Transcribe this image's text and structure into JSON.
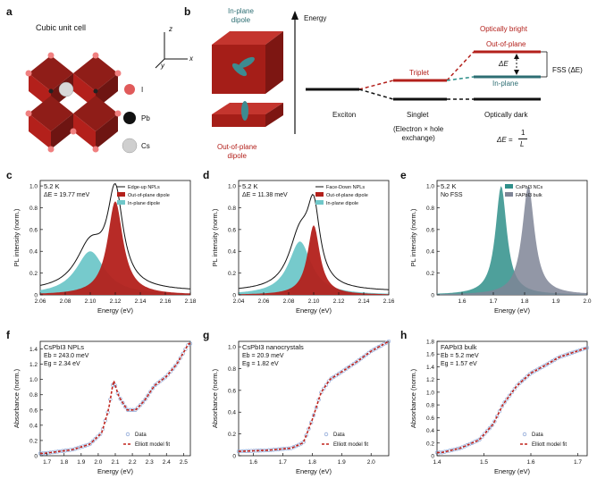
{
  "panel_letters": [
    "a",
    "b",
    "c",
    "d",
    "e",
    "f",
    "g",
    "h"
  ],
  "panel_a": {
    "title": "Cubic unit cell",
    "legend": [
      {
        "label": "I",
        "color": "#e05a5a"
      },
      {
        "label": "Pb",
        "color": "#111111"
      },
      {
        "label": "Cs",
        "color": "#cfcfcf"
      }
    ],
    "axes": [
      "z",
      "y",
      "x"
    ]
  },
  "panel_b": {
    "in_plane_label": "In-plane\ndipole",
    "out_plane_label": "Out-of-plane\ndipole",
    "energy_label": "Energy",
    "optically_bright": "Optically bright",
    "out_of_plane": "Out-of-plane",
    "delta_e": "ΔE",
    "fss": "FSS (ΔE)",
    "in_plane": "In-plane",
    "triplet": "Triplet",
    "exciton": "Exciton",
    "singlet": "Singlet",
    "optically_dark": "Optically dark",
    "exchange": "(Electron × hole\nexchange)",
    "formula_lhs": "ΔE =",
    "formula_num": "1",
    "formula_den": "L"
  },
  "colors": {
    "red": "#b3201b",
    "cyan": "#6fc7c9",
    "teal": "#2f8f8a",
    "grey": "#7f8596",
    "dark_teal": "#2d6e73",
    "fit_red": "#c0241c",
    "data_blue": "#8fa8d8"
  },
  "chart_data": [
    {
      "id": "c",
      "type": "area",
      "annotation_lines": [
        "5.2 K",
        "ΔE = 19.77 meV"
      ],
      "xlabel": "Energy (eV)",
      "ylabel": "PL intensity (norm.)",
      "xlim": [
        2.06,
        2.18
      ],
      "ylim": [
        0,
        1.05
      ],
      "xticks": [
        "2.06",
        "2.08",
        "2.10",
        "2.12",
        "2.14",
        "2.16",
        "2.18"
      ],
      "yticks": [
        "0",
        "0.2",
        "0.4",
        "0.6",
        "0.8",
        "1.0"
      ],
      "legend": [
        "Edge-up NPLs",
        "Out-of-plane dipole",
        "In-plane dipole"
      ],
      "series": [
        {
          "name": "In-plane dipole",
          "peak_x": 2.1,
          "peak_y": 0.4,
          "width": 0.014
        },
        {
          "name": "Out-of-plane dipole",
          "peak_x": 2.12,
          "peak_y": 0.86,
          "width": 0.0075
        }
      ]
    },
    {
      "id": "d",
      "type": "area",
      "annotation_lines": [
        "5.2 K",
        "ΔE = 11.38 meV"
      ],
      "xlabel": "Energy (eV)",
      "ylabel": "PL intensity (norm.)",
      "xlim": [
        2.04,
        2.16
      ],
      "ylim": [
        0,
        1.05
      ],
      "xticks": [
        "2.04",
        "2.06",
        "2.08",
        "2.10",
        "2.12",
        "2.14",
        "2.16"
      ],
      "yticks": [
        "0",
        "0.2",
        "0.4",
        "0.6",
        "0.8",
        "1.0"
      ],
      "legend": [
        "Face-Down NPLs",
        "Out-of-plane dipole",
        "In-plane dipole"
      ],
      "series": [
        {
          "name": "In-plane dipole",
          "peak_x": 2.089,
          "peak_y": 0.49,
          "width": 0.011
        },
        {
          "name": "Out-of-plane dipole",
          "peak_x": 2.1,
          "peak_y": 0.64,
          "width": 0.006
        }
      ]
    },
    {
      "id": "e",
      "type": "area",
      "annotation_lines": [
        "5.2 K",
        "No FSS"
      ],
      "xlabel": "Energy (eV)",
      "ylabel": "PL intensity (norm.)",
      "xlim": [
        1.52,
        2.0
      ],
      "ylim": [
        0,
        1.05
      ],
      "xticks": [
        "1.6",
        "1.7",
        "1.8",
        "1.9",
        "2.0"
      ],
      "yticks": [
        "0",
        "0.2",
        "0.4",
        "0.6",
        "0.8",
        "1.0"
      ],
      "legend": [
        "CsPbI3 NCs",
        "FAPbI3 bulk"
      ],
      "series": [
        {
          "name": "CsPbI3 NCs",
          "peak_x": 1.725,
          "peak_y": 1.0,
          "width": 0.022
        },
        {
          "name": "FAPbI3 bulk",
          "peak_x": 1.812,
          "peak_y": 1.0,
          "width": 0.024
        }
      ]
    },
    {
      "id": "f",
      "type": "scatter",
      "annotation_lines": [
        "CsPbI3 NPLs",
        "Eb = 243.0 meV",
        "Eg = 2.34 eV"
      ],
      "xlabel": "Energy (eV)",
      "ylabel": "Absorbance (norm.)",
      "xlim": [
        1.66,
        2.54
      ],
      "ylim": [
        0,
        1.5
      ],
      "xticks": [
        "1.7",
        "1.8",
        "1.9",
        "2.0",
        "2.1",
        "2.2",
        "2.3",
        "2.4",
        "2.5"
      ],
      "yticks": [
        "0",
        "0.2",
        "0.4",
        "0.6",
        "0.8",
        "1.0",
        "1.2",
        "1.4"
      ],
      "legend": [
        "Data",
        "Elliott model fit"
      ],
      "points": [
        [
          1.68,
          0.03
        ],
        [
          1.75,
          0.05
        ],
        [
          1.85,
          0.08
        ],
        [
          1.95,
          0.15
        ],
        [
          2.02,
          0.3
        ],
        [
          2.06,
          0.6
        ],
        [
          2.09,
          0.99
        ],
        [
          2.12,
          0.78
        ],
        [
          2.17,
          0.6
        ],
        [
          2.22,
          0.6
        ],
        [
          2.27,
          0.72
        ],
        [
          2.33,
          0.92
        ],
        [
          2.4,
          1.04
        ],
        [
          2.46,
          1.2
        ],
        [
          2.53,
          1.47
        ]
      ]
    },
    {
      "id": "g",
      "type": "scatter",
      "annotation_lines": [
        "CsPbI3 nanocrystals",
        "Eb = 20.9 meV",
        "Eg = 1.82 eV"
      ],
      "xlabel": "Energy (eV)",
      "ylabel": "Absorbance (norm.)",
      "xlim": [
        1.55,
        2.06
      ],
      "ylim": [
        0,
        1.05
      ],
      "xticks": [
        "1.6",
        "1.7",
        "1.8",
        "1.9",
        "2.0"
      ],
      "yticks": [
        "0",
        "0.2",
        "0.4",
        "0.6",
        "0.8",
        "1.0"
      ],
      "legend": [
        "Data",
        "Elliott model fit"
      ],
      "points": [
        [
          1.55,
          0.04
        ],
        [
          1.65,
          0.05
        ],
        [
          1.73,
          0.07
        ],
        [
          1.77,
          0.12
        ],
        [
          1.8,
          0.33
        ],
        [
          1.83,
          0.58
        ],
        [
          1.86,
          0.7
        ],
        [
          1.9,
          0.77
        ],
        [
          1.95,
          0.86
        ],
        [
          2.0,
          0.96
        ],
        [
          2.06,
          1.05
        ]
      ]
    },
    {
      "id": "h",
      "type": "scatter",
      "annotation_lines": [
        "FAPbI3 bulk",
        "Eb = 5.2 meV",
        "Eg = 1.57 eV"
      ],
      "xlabel": "Energy (eV)",
      "ylabel": "Absorbance (norm.)",
      "xlim": [
        1.4,
        1.72
      ],
      "ylim": [
        0,
        1.8
      ],
      "xticks": [
        "1.4",
        "1.5",
        "1.6",
        "1.7"
      ],
      "yticks": [
        "0",
        "0.2",
        "0.4",
        "0.6",
        "0.8",
        "1.0",
        "1.2",
        "1.4",
        "1.6",
        "1.8"
      ],
      "legend": [
        "Data",
        "Elliott model fit"
      ],
      "points": [
        [
          1.41,
          0.05
        ],
        [
          1.45,
          0.12
        ],
        [
          1.49,
          0.25
        ],
        [
          1.52,
          0.5
        ],
        [
          1.54,
          0.8
        ],
        [
          1.57,
          1.1
        ],
        [
          1.6,
          1.3
        ],
        [
          1.63,
          1.42
        ],
        [
          1.66,
          1.55
        ],
        [
          1.7,
          1.65
        ],
        [
          1.72,
          1.7
        ]
      ]
    }
  ]
}
